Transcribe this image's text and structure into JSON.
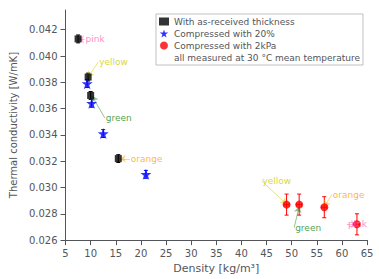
{
  "chart_data": {
    "type": "scatter",
    "xlabel": "Density [kg/m³]",
    "ylabel": "Thermal conductivity [W/mK]",
    "xlim": [
      5,
      65
    ],
    "ylim": [
      0.026,
      0.0435
    ],
    "xticks": [
      5,
      10,
      15,
      20,
      25,
      30,
      35,
      40,
      45,
      50,
      55,
      60,
      65
    ],
    "yticks": [
      0.026,
      0.028,
      {
        "value": 0.03,
        "label": "0.030"
      },
      0.032,
      0.034,
      0.036,
      0.038,
      {
        "value": 0.04,
        "label": "0.040"
      },
      0.042
    ],
    "grid": false,
    "legend": "upper right",
    "series": [
      {
        "name": "With as-received thickness",
        "color": "black",
        "marker": "square",
        "x": [
          7.5,
          9.5,
          10.0,
          15.5
        ],
        "y": [
          0.0413,
          0.0384,
          0.037,
          0.0322
        ],
        "yerr": [
          0.0003,
          0.0003,
          0.0003,
          0.0003
        ]
      },
      {
        "name": "Compressed with 20%",
        "color": "blue",
        "marker": "star",
        "x": [
          9.3,
          10.2,
          12.5,
          21.0
        ],
        "y": [
          0.0379,
          0.0364,
          0.0341,
          0.031
        ],
        "yerr": [
          0.0003,
          0.0003,
          0.0003,
          0.0003
        ]
      },
      {
        "name": "Compressed with 2kPa",
        "color": "red",
        "marker": "circle",
        "x": [
          49.0,
          51.5,
          56.5,
          63.0
        ],
        "y": [
          0.0287,
          0.0287,
          0.0285,
          0.0272
        ],
        "xerr": [
          0.5,
          0.5,
          0.5,
          0.5
        ],
        "yerr": [
          0.0008,
          0.0008,
          0.0008,
          0.0008
        ]
      },
      {
        "name": "all measured at 30 °C mean temperature",
        "marker": "none",
        "x": [],
        "y": []
      }
    ],
    "annotations": [
      {
        "text": "pink",
        "xy": [
          7.5,
          0.04128
        ],
        "xytext": [
          8.8,
          0.04128
        ],
        "color": "#ff69b4"
      },
      {
        "text": "yellow",
        "xy": [
          9.5,
          0.03838
        ],
        "xytext": [
          11.5,
          0.03955
        ],
        "color": "#cccc00"
      },
      {
        "text": "green",
        "xy": [
          10.3,
          0.03695
        ],
        "xytext": [
          12.8,
          0.0353
        ],
        "color": "#228B22"
      },
      {
        "text": "orange",
        "xy": [
          15.8,
          0.03218
        ],
        "xytext": [
          17.8,
          0.03218
        ],
        "color": "#FFA500"
      },
      {
        "text": "yellow",
        "xy": [
          49.0,
          0.02875
        ],
        "xytext": [
          44.0,
          0.0305
        ],
        "color": "#cccc00"
      },
      {
        "text": "green",
        "xy": [
          51.5,
          0.02855
        ],
        "xytext": [
          50.5,
          0.02695
        ],
        "color": "#228B22"
      },
      {
        "text": "orange",
        "xy": [
          56.5,
          0.02855
        ],
        "xytext": [
          58.0,
          0.02945
        ],
        "color": "#FFA500"
      },
      {
        "text": "pink",
        "xy": [
          63.0,
          0.0272
        ],
        "xytext": [
          61.0,
          0.0272
        ],
        "color": "#ff69b4"
      }
    ]
  }
}
